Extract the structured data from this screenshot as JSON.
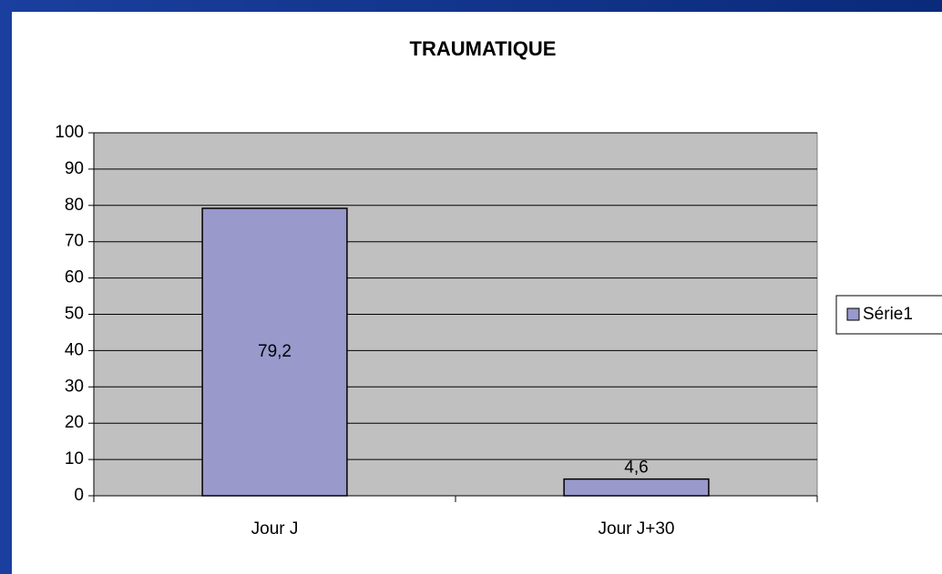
{
  "chart_data": {
    "type": "bar",
    "title": "TRAUMATIQUE",
    "categories": [
      "Jour J",
      "Jour J+30"
    ],
    "series": [
      {
        "name": "Série1",
        "color": "#9999cc",
        "values": [
          79.2,
          4.6
        ],
        "value_labels": [
          "79,2",
          "4,6"
        ]
      }
    ],
    "ylim": [
      0,
      100
    ],
    "yticks": [
      0,
      10,
      20,
      30,
      40,
      50,
      60,
      70,
      80,
      90,
      100
    ],
    "grid": true,
    "legend": "right",
    "plot_background": "#c0c0c0"
  }
}
